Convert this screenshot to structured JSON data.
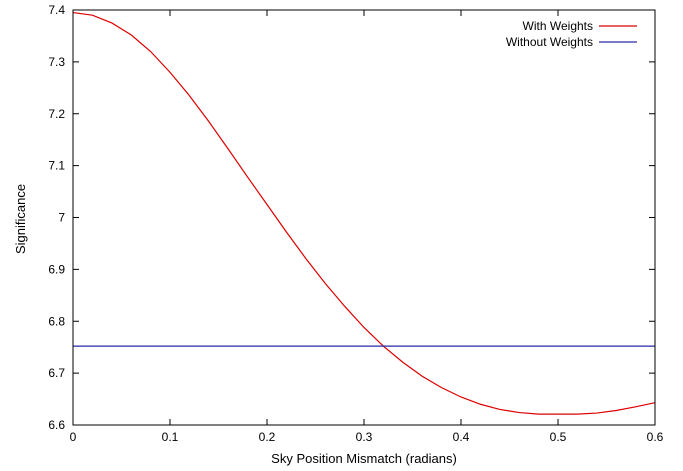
{
  "chart_data": {
    "type": "line",
    "title": "",
    "xlabel": "Sky Position Mismatch (radians)",
    "ylabel": "Significance",
    "xlim": [
      0,
      0.6
    ],
    "ylim": [
      6.6,
      7.4
    ],
    "x_ticks": [
      0,
      0.1,
      0.2,
      0.3,
      0.4,
      0.5,
      0.6
    ],
    "x_tick_labels": [
      "0",
      "0.1",
      "0.2",
      "0.3",
      "0.4",
      "0.5",
      "0.6"
    ],
    "y_ticks": [
      6.6,
      6.7,
      6.8,
      6.9,
      7.0,
      7.1,
      7.2,
      7.3,
      7.4
    ],
    "y_tick_labels": [
      "6.6",
      "6.7",
      "6.8",
      "6.9",
      "7",
      "7.1",
      "7.2",
      "7.3",
      "7.4"
    ],
    "grid": false,
    "legend_position": "top-right",
    "series": [
      {
        "name": "With Weights",
        "color": "#dd0000",
        "x": [
          0,
          0.02,
          0.04,
          0.06,
          0.08,
          0.1,
          0.12,
          0.14,
          0.16,
          0.18,
          0.2,
          0.22,
          0.24,
          0.26,
          0.28,
          0.3,
          0.32,
          0.34,
          0.36,
          0.38,
          0.4,
          0.42,
          0.44,
          0.46,
          0.48,
          0.5,
          0.52,
          0.54,
          0.56,
          0.58,
          0.6
        ],
        "y": [
          7.395,
          7.39,
          7.375,
          7.352,
          7.32,
          7.28,
          7.235,
          7.185,
          7.132,
          7.078,
          7.025,
          6.972,
          6.921,
          6.873,
          6.829,
          6.788,
          6.752,
          6.721,
          6.694,
          6.672,
          6.654,
          6.64,
          6.63,
          6.624,
          6.621,
          6.621,
          6.621,
          6.623,
          6.628,
          6.635,
          6.643
        ]
      },
      {
        "name": "Without Weights",
        "color": "#2a2aaa",
        "x": [
          0,
          0.6
        ],
        "y": [
          6.752,
          6.752
        ]
      }
    ]
  }
}
